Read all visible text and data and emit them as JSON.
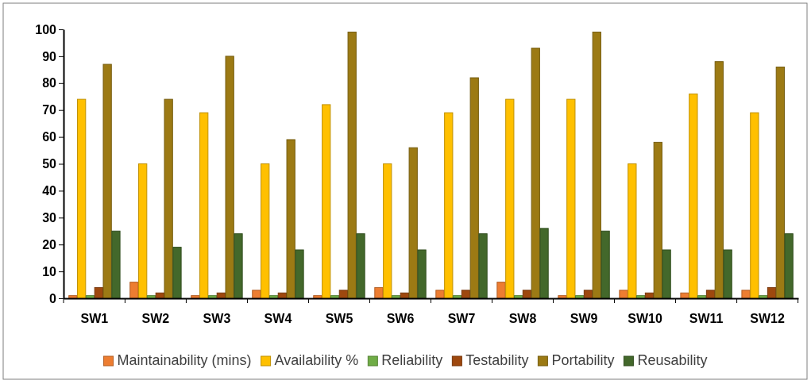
{
  "chart_data": {
    "type": "bar",
    "categories": [
      "SW1",
      "SW2",
      "SW3",
      "SW4",
      "SW5",
      "SW6",
      "SW7",
      "SW8",
      "SW9",
      "SW10",
      "SW11",
      "SW12"
    ],
    "series": [
      {
        "name": "Maintainability (mins)",
        "color": "#ed7d31",
        "values": [
          1,
          6,
          1,
          3,
          1,
          4,
          3,
          6,
          1,
          3,
          2,
          3
        ]
      },
      {
        "name": "Availability %",
        "color": "#ffc000",
        "values": [
          74,
          50,
          69,
          50,
          72,
          50,
          69,
          74,
          74,
          50,
          76,
          69
        ]
      },
      {
        "name": "Reliability",
        "color": "#70ad47",
        "values": [
          1,
          1,
          1,
          1,
          1,
          1,
          1,
          1,
          1,
          1,
          1,
          1
        ]
      },
      {
        "name": "Testability",
        "color": "#9e480e",
        "values": [
          4,
          2,
          2,
          2,
          3,
          2,
          3,
          3,
          3,
          2,
          3,
          4
        ]
      },
      {
        "name": "Portability",
        "color": "#9c7a14",
        "values": [
          87,
          74,
          90,
          59,
          99,
          56,
          82,
          93,
          99,
          58,
          88,
          86
        ]
      },
      {
        "name": "Reusability",
        "color": "#43682b",
        "values": [
          25,
          19,
          24,
          18,
          24,
          18,
          24,
          26,
          25,
          18,
          18,
          24
        ]
      }
    ],
    "ylim": [
      0,
      100
    ],
    "yticks": [
      0,
      10,
      20,
      30,
      40,
      50,
      60,
      70,
      80,
      90,
      100
    ],
    "grid": false,
    "legend": "bottom"
  }
}
